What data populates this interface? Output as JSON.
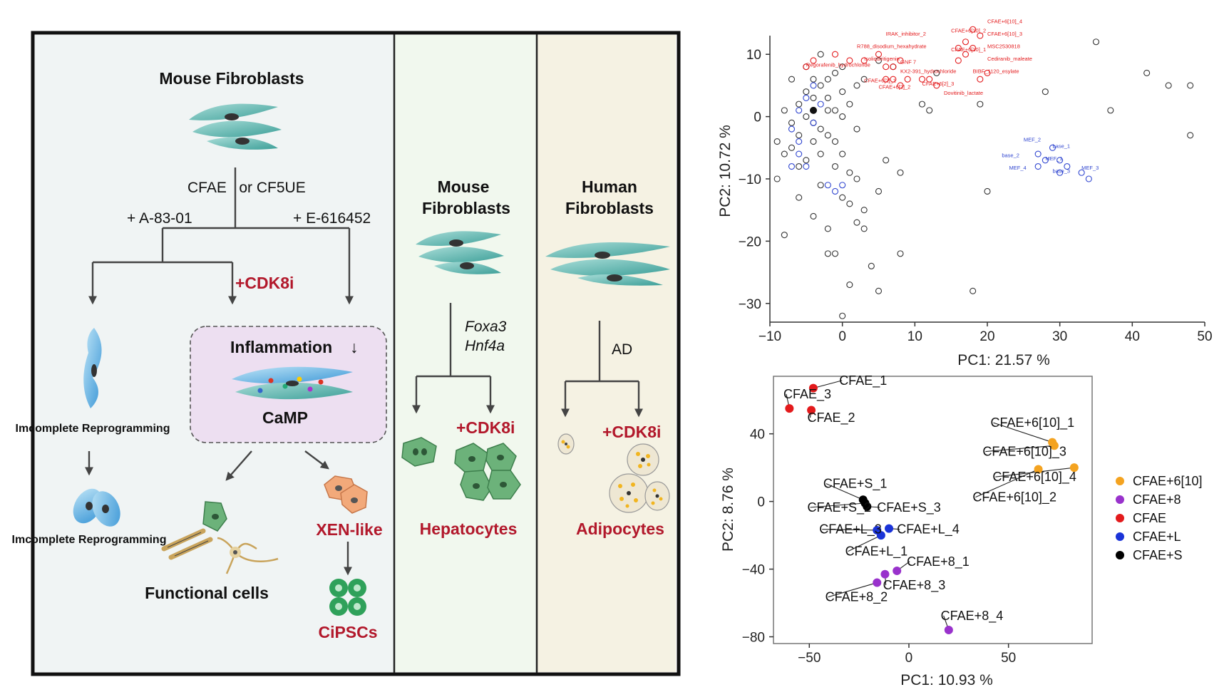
{
  "schematic": {
    "panel_a": {
      "title": "Mouse Fibroblasts",
      "treatment": "CFAE   or CF5UE",
      "left_add": "+ A-83-01",
      "right_add": "+ E-616452",
      "cdk8i": "+CDK8i",
      "incomplete_1": "Imcomplete Reprogramming",
      "incomplete_2": "Imcomplete Reprogramming",
      "inflammation": "Inflammation",
      "inflammation_arrow": "↓",
      "camp": "CaMP",
      "functional": "Functional cells",
      "xen": "XEN-like",
      "cipsc": "CiPSCs"
    },
    "panel_b": {
      "title_1": "Mouse",
      "title_2": "Fibroblasts",
      "factor_1": "Foxa3",
      "factor_2": "Hnf4a",
      "cdk8i": "+CDK8i",
      "outcome": "Hepatocytes"
    },
    "panel_c": {
      "title_1": "Human",
      "title_2": "Fibroblasts",
      "factor": "AD",
      "cdk8i": "+CDK8i",
      "outcome": "Adipocytes"
    }
  },
  "colors": {
    "red_label": "#b2182b",
    "cell_teal": "#5fb8b0",
    "hep_green": "#6cb27a",
    "black_circle": "#333333",
    "red_circle": "#e31a1c",
    "blue_circle": "#3046d0",
    "cfae_6_10": "#f4a320",
    "cfae_8": "#9932cc",
    "cfae": "#e31a1c",
    "cfae_l": "#1a33d8",
    "cfae_s": "#000000"
  },
  "chart_data": [
    {
      "type": "scatter",
      "xlabel": "PC1: 21.57 %",
      "ylabel": "PC2: 10.72 %",
      "xlim": [
        -10,
        50
      ],
      "ylim": [
        -33,
        13
      ],
      "xticks": [
        -10,
        0,
        10,
        20,
        30,
        40,
        50
      ],
      "yticks": [
        10,
        0,
        -10,
        -20,
        -30
      ],
      "xtick_labels": [
        "−10",
        "0",
        "10",
        "20",
        "30",
        "40",
        "50"
      ],
      "ytick_labels": [
        "10",
        "0",
        "−10",
        "−20",
        "−30"
      ],
      "black_points": [
        [
          -9,
          -4
        ],
        [
          -8,
          -6
        ],
        [
          -7,
          -1
        ],
        [
          -6,
          2
        ],
        [
          -5,
          4
        ],
        [
          -4,
          6
        ],
        [
          -3,
          5
        ],
        [
          -2,
          3
        ],
        [
          -1,
          7
        ],
        [
          0,
          8
        ],
        [
          1,
          2
        ],
        [
          2,
          -2
        ],
        [
          -1,
          -4
        ],
        [
          0,
          -6
        ],
        [
          1,
          -9
        ],
        [
          -3,
          -11
        ],
        [
          -6,
          -13
        ],
        [
          -8,
          -19
        ],
        [
          -9,
          -10
        ],
        [
          -4,
          -16
        ],
        [
          -2,
          -18
        ],
        [
          -1,
          -22
        ],
        [
          0,
          -13
        ],
        [
          1,
          -14
        ],
        [
          3,
          -15
        ],
        [
          2,
          -17
        ],
        [
          4,
          -24
        ],
        [
          5,
          -28
        ],
        [
          1,
          -27
        ],
        [
          0,
          -32
        ],
        [
          -2,
          -22
        ],
        [
          3,
          -18
        ],
        [
          8,
          -22
        ],
        [
          8,
          -9
        ],
        [
          2,
          -10
        ],
        [
          5,
          -12
        ],
        [
          6,
          -7
        ],
        [
          11,
          2
        ],
        [
          12,
          1
        ],
        [
          13,
          7
        ],
        [
          19,
          2
        ],
        [
          20,
          -12
        ],
        [
          28,
          4
        ],
        [
          35,
          12
        ],
        [
          37,
          1
        ],
        [
          42,
          7
        ],
        [
          45,
          5
        ],
        [
          48,
          5
        ],
        [
          48,
          -3
        ],
        [
          18,
          -28
        ],
        [
          3,
          6
        ],
        [
          5,
          9
        ],
        [
          7,
          8
        ],
        [
          -3,
          10
        ],
        [
          -5,
          8
        ],
        [
          -7,
          6
        ],
        [
          -2,
          1
        ],
        [
          -4,
          -1
        ],
        [
          -6,
          -3
        ],
        [
          -3,
          -6
        ],
        [
          -1,
          -8
        ],
        [
          0,
          0
        ],
        [
          -1,
          1
        ],
        [
          -2,
          -3
        ],
        [
          -5,
          -7
        ],
        [
          -3,
          -2
        ],
        [
          -4,
          3
        ],
        [
          -8,
          1
        ],
        [
          -7,
          -5
        ],
        [
          -6,
          -8
        ],
        [
          -2,
          6
        ],
        [
          0,
          4
        ],
        [
          2,
          5
        ],
        [
          -5,
          0
        ],
        [
          -4,
          -4
        ]
      ],
      "blue_points": [
        [
          -7,
          -2
        ],
        [
          -6,
          -4
        ],
        [
          -6,
          -6
        ],
        [
          -5,
          -8
        ],
        [
          -7,
          -8
        ],
        [
          -4,
          -1
        ],
        [
          -5,
          3
        ],
        [
          -4,
          5
        ],
        [
          -3,
          2
        ],
        [
          -6,
          1
        ],
        [
          -2,
          -11
        ],
        [
          0,
          -11
        ],
        [
          -1,
          -12
        ],
        [
          27,
          -6
        ],
        [
          28,
          -7
        ],
        [
          29,
          -5
        ],
        [
          30,
          -7
        ],
        [
          31,
          -8
        ],
        [
          30,
          -9
        ],
        [
          33,
          -9
        ],
        [
          34,
          -10
        ],
        [
          27,
          -8
        ]
      ],
      "red_points": [
        [
          -5,
          8
        ],
        [
          -4,
          9
        ],
        [
          -1,
          10
        ],
        [
          1,
          9
        ],
        [
          3,
          9
        ],
        [
          5,
          10
        ],
        [
          6,
          8
        ],
        [
          7,
          8
        ],
        [
          8,
          9
        ],
        [
          6,
          6
        ],
        [
          7,
          6
        ],
        [
          8,
          5
        ],
        [
          9,
          6
        ],
        [
          11,
          6
        ],
        [
          12,
          6
        ],
        [
          13,
          5
        ],
        [
          16,
          9
        ],
        [
          16,
          11
        ],
        [
          17,
          10
        ],
        [
          17,
          12
        ],
        [
          18,
          11
        ],
        [
          18,
          14
        ],
        [
          19,
          13
        ],
        [
          19,
          6
        ],
        [
          20,
          7
        ]
      ],
      "red_labels": [
        {
          "text": "IRAK_inhibitor_2",
          "x": 6,
          "y": 13
        },
        {
          "text": "R788_disodium_hexahydrate",
          "x": 2,
          "y": 11
        },
        {
          "text": "Isoliquiritigenin",
          "x": 3,
          "y": 9
        },
        {
          "text": "Regorafenib_hydrochloride",
          "x": -5,
          "y": 8
        },
        {
          "text": "GNF 7",
          "x": 8,
          "y": 8.5
        },
        {
          "text": "KX2-391_hydrochloride",
          "x": 8,
          "y": 7
        },
        {
          "text": "BIBF_1120_esylate",
          "x": 18,
          "y": 7
        },
        {
          "text": "CFAE+6[2]_1",
          "x": 3,
          "y": 5.5
        },
        {
          "text": "CFAE+6[2]_2",
          "x": 5,
          "y": 4.5
        },
        {
          "text": "CFAE+6[2]_3",
          "x": 11,
          "y": 5
        },
        {
          "text": "Dovitinib_lactate",
          "x": 14,
          "y": 3.5
        },
        {
          "text": "CFAE+6[10]_4",
          "x": 20,
          "y": 15
        },
        {
          "text": "CFAE+6[10]_3",
          "x": 20,
          "y": 13
        },
        {
          "text": "CFAE+6[10]_2",
          "x": 15,
          "y": 13.5
        },
        {
          "text": "CFAE+6[10]_1",
          "x": 15,
          "y": 10.5
        },
        {
          "text": "MSC2530818",
          "x": 20,
          "y": 11
        },
        {
          "text": "Cediranib_maleate",
          "x": 20,
          "y": 9
        }
      ],
      "blue_labels": [
        {
          "text": "MEF_2",
          "x": 25,
          "y": -4
        },
        {
          "text": "base_1",
          "x": 29,
          "y": -5
        },
        {
          "text": "base_2",
          "x": 22,
          "y": -6.5
        },
        {
          "text": "MEF_1",
          "x": 28,
          "y": -7
        },
        {
          "text": "MEF_4",
          "x": 23,
          "y": -8.5
        },
        {
          "text": "base_3",
          "x": 29,
          "y": -9
        },
        {
          "text": "MEF_3",
          "x": 33,
          "y": -8.5
        }
      ]
    },
    {
      "type": "scatter",
      "xlabel": "PC1: 10.93 %",
      "ylabel": "PC2: 8.76 %",
      "xlim": [
        -68,
        92
      ],
      "ylim": [
        -84,
        74
      ],
      "xticks": [
        -50,
        0,
        50
      ],
      "yticks": [
        40,
        0,
        -40,
        -80
      ],
      "xtick_labels": [
        "−50",
        "0",
        "50"
      ],
      "ytick_labels": [
        "40",
        "0",
        "−40",
        "−80"
      ],
      "legend": [
        {
          "name": "CFAE+6[10]",
          "color": "#f4a320"
        },
        {
          "name": "CFAE+8",
          "color": "#9932cc"
        },
        {
          "name": "CFAE",
          "color": "#e31a1c"
        },
        {
          "name": "CFAE+L",
          "color": "#1a33d8"
        },
        {
          "name": "CFAE+S",
          "color": "#000000"
        }
      ],
      "points": [
        {
          "label": "CFAE_1",
          "group": "CFAE",
          "x": -48,
          "y": 67,
          "lx": -35,
          "ly": 69
        },
        {
          "label": "CFAE_3",
          "group": "CFAE",
          "x": -60,
          "y": 55,
          "lx": -63,
          "ly": 61
        },
        {
          "label": "CFAE_2",
          "group": "CFAE",
          "x": -49,
          "y": 54,
          "lx": -51,
          "ly": 47
        },
        {
          "label": "CFAE+6[10]_1",
          "group": "CFAE+6[10]",
          "x": 72,
          "y": 35,
          "lx": 41,
          "ly": 44
        },
        {
          "label": "CFAE+6[10]_3",
          "group": "CFAE+6[10]",
          "x": 73,
          "y": 33,
          "lx": 37,
          "ly": 27
        },
        {
          "label": "CFAE+6[10]_4",
          "group": "CFAE+6[10]",
          "x": 83,
          "y": 20,
          "lx": 42,
          "ly": 12
        },
        {
          "label": "CFAE+6[10]_2",
          "group": "CFAE+6[10]",
          "x": 65,
          "y": 19,
          "lx": 32,
          "ly": 0
        },
        {
          "label": "CFAE+S_1",
          "group": "CFAE+S",
          "x": -23,
          "y": 1,
          "lx": -43,
          "ly": 8
        },
        {
          "label": "CFAE+S_2",
          "group": "CFAE+S",
          "x": -22,
          "y": -1,
          "lx": -51,
          "ly": -6
        },
        {
          "label": "CFAE+S_3",
          "group": "CFAE+S",
          "x": -21,
          "y": -3,
          "lx": -16,
          "ly": -6
        },
        {
          "label": "CFAE+L_3",
          "group": "CFAE+L",
          "x": -16,
          "y": -17,
          "lx": -45,
          "ly": -19
        },
        {
          "label": "CFAE+L_4",
          "group": "CFAE+L",
          "x": -10,
          "y": -16,
          "lx": -6,
          "ly": -19
        },
        {
          "label": "CFAE+L_1",
          "group": "CFAE+L",
          "x": -14,
          "y": -20,
          "lx": -32,
          "ly": -32
        },
        {
          "label": "CFAE+8_1",
          "group": "CFAE+8",
          "x": -6,
          "y": -41,
          "lx": -1,
          "ly": -38
        },
        {
          "label": "CFAE+8_3",
          "group": "CFAE+8",
          "x": -12,
          "y": -43,
          "lx": -13,
          "ly": -52
        },
        {
          "label": "CFAE+8_2",
          "group": "CFAE+8",
          "x": -16,
          "y": -48,
          "lx": -42,
          "ly": -59
        },
        {
          "label": "CFAE+8_4",
          "group": "CFAE+8",
          "x": 20,
          "y": -76,
          "lx": 16,
          "ly": -70
        }
      ]
    }
  ]
}
